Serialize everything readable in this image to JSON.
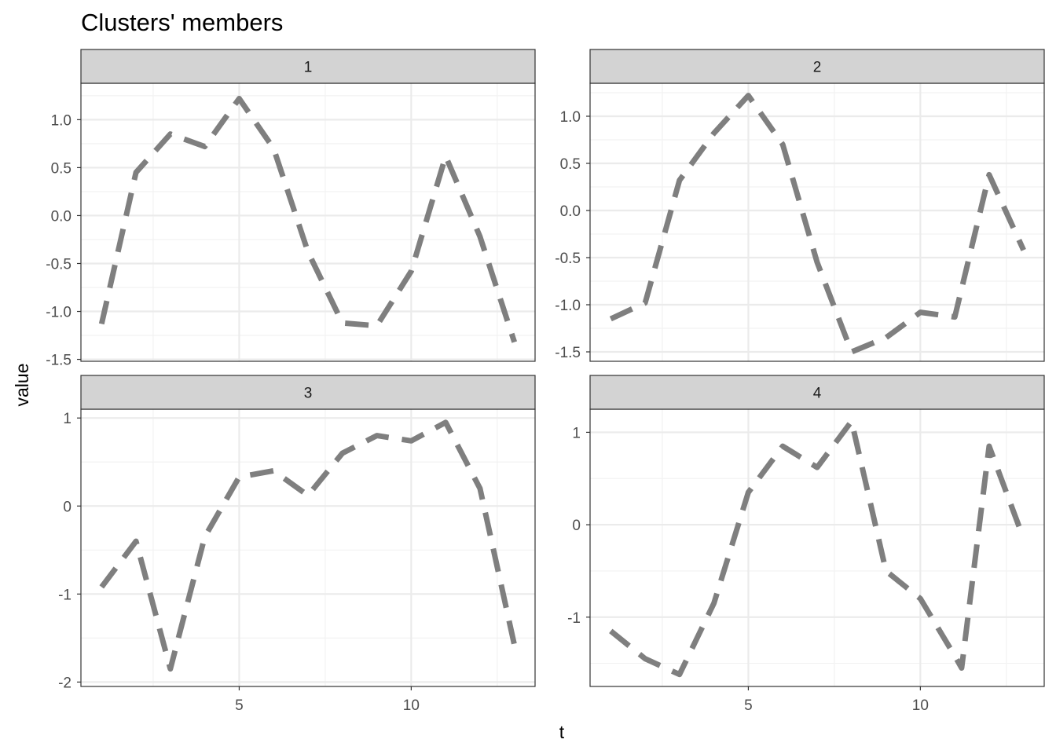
{
  "figure": {
    "title": "Clusters' members",
    "xlabel": "t",
    "ylabel": "value"
  },
  "style": {
    "line_color": "#7f7f7f",
    "strip_fill": "#d3d3d3",
    "grid_major": "#ebebeb",
    "grid_minor": "#f2f2f2",
    "panel_border": "#333333",
    "axis_text": "#4d4d4d"
  },
  "chart_data": [
    {
      "type": "line",
      "facet": "1",
      "xlim": [
        0.4,
        13.6
      ],
      "ylim": [
        -1.52,
        1.38
      ],
      "x_ticks": [
        5,
        10
      ],
      "y_ticks": [
        -1.5,
        -1.0,
        -0.5,
        0.0,
        0.5,
        1.0
      ],
      "y_tick_labels": [
        "-1.5",
        "-1.0",
        "-0.5",
        "0.0",
        "0.5",
        "1.0"
      ],
      "series": [
        {
          "x": [
            1,
            2,
            3,
            4,
            5,
            6,
            7,
            8,
            9,
            10,
            11,
            12,
            13
          ],
          "y": [
            -1.13,
            0.45,
            0.85,
            0.72,
            1.22,
            0.7,
            -0.38,
            -1.12,
            -1.15,
            -0.58,
            0.62,
            -0.22,
            -1.32
          ]
        }
      ]
    },
    {
      "type": "line",
      "facet": "2",
      "xlim": [
        0.4,
        13.6
      ],
      "ylim": [
        -1.6,
        1.35
      ],
      "x_ticks": [
        5,
        10
      ],
      "y_ticks": [
        -1.5,
        -1.0,
        -0.5,
        0.0,
        0.5,
        1.0
      ],
      "y_tick_labels": [
        "-1.5",
        "-1.0",
        "-0.5",
        "0.0",
        "0.5",
        "1.0"
      ],
      "series": [
        {
          "x": [
            1,
            2,
            3,
            4,
            5,
            6,
            7,
            8,
            9,
            10,
            11,
            12,
            13
          ],
          "y": [
            -1.15,
            -0.98,
            0.32,
            0.82,
            1.22,
            0.7,
            -0.55,
            -1.5,
            -1.35,
            -1.08,
            -1.13,
            0.38,
            -0.42
          ]
        }
      ]
    },
    {
      "type": "line",
      "facet": "3",
      "xlim": [
        0.4,
        13.6
      ],
      "ylim": [
        -2.05,
        1.1
      ],
      "x_ticks": [
        5,
        10
      ],
      "y_ticks": [
        -2,
        -1,
        0,
        1
      ],
      "y_tick_labels": [
        "-2",
        "-1",
        "0",
        "1"
      ],
      "series": [
        {
          "x": [
            1,
            2,
            3,
            4,
            5,
            6,
            7,
            8,
            9,
            10,
            11,
            12,
            13
          ],
          "y": [
            -0.92,
            -0.4,
            -1.85,
            -0.35,
            0.33,
            0.4,
            0.12,
            0.6,
            0.8,
            0.74,
            0.95,
            0.2,
            -1.58
          ]
        }
      ]
    },
    {
      "type": "line",
      "facet": "4",
      "xlim": [
        0.4,
        13.6
      ],
      "ylim": [
        -1.75,
        1.25
      ],
      "x_ticks": [
        5,
        10
      ],
      "y_ticks": [
        -1,
        0,
        1
      ],
      "y_tick_labels": [
        "-1",
        "0",
        "1"
      ],
      "series": [
        {
          "x": [
            1,
            2,
            3,
            4,
            5,
            6,
            7,
            8,
            9,
            10,
            11,
            11.2,
            12,
            13
          ],
          "y": [
            -1.15,
            -1.45,
            -1.62,
            -0.85,
            0.35,
            0.85,
            0.62,
            1.12,
            -0.5,
            -0.8,
            -1.42,
            -1.55,
            0.85,
            -0.15
          ]
        }
      ]
    }
  ]
}
